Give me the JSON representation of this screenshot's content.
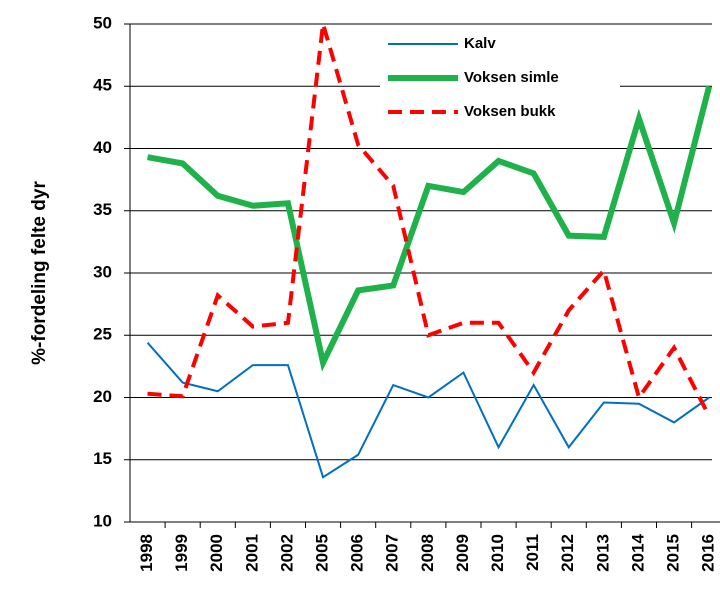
{
  "chart_data": {
    "type": "line",
    "y_label": "%-fordeling felte dyr",
    "categories": [
      "1998",
      "1999",
      "2000",
      "2001",
      "2002",
      "2005",
      "2006",
      "2007",
      "2008",
      "2009",
      "2010",
      "2011",
      "2012",
      "2013",
      "2014",
      "2015",
      "2016"
    ],
    "series": [
      {
        "name": "Kalv",
        "color": "#0070c0",
        "dash": "solid",
        "width": 2,
        "values": [
          24.4,
          21.2,
          20.5,
          22.6,
          22.6,
          13.6,
          15.4,
          21,
          20,
          22,
          16,
          21,
          16,
          19.6,
          19.5,
          18,
          20
        ]
      },
      {
        "name": "Voksen simle",
        "color": "#1fb14a",
        "dash": "solid",
        "width": 6,
        "values": [
          39.3,
          38.8,
          36.2,
          35.4,
          35.6,
          22.8,
          28.6,
          29,
          37,
          36.5,
          39,
          38,
          33,
          32.9,
          42.4,
          34,
          45
        ]
      },
      {
        "name": "Voksen bukk",
        "color": "#ff0000",
        "dash": "dashed",
        "width": 4,
        "values": [
          20.3,
          20.1,
          28.2,
          25.7,
          26,
          50,
          40.3,
          37,
          25,
          26,
          26,
          22,
          27,
          30.2,
          20,
          24,
          18.5
        ]
      }
    ],
    "ylim": [
      10,
      50
    ],
    "yticks": [
      10,
      15,
      20,
      25,
      30,
      35,
      40,
      45,
      50
    ],
    "grid": true,
    "legend": "top-right"
  }
}
